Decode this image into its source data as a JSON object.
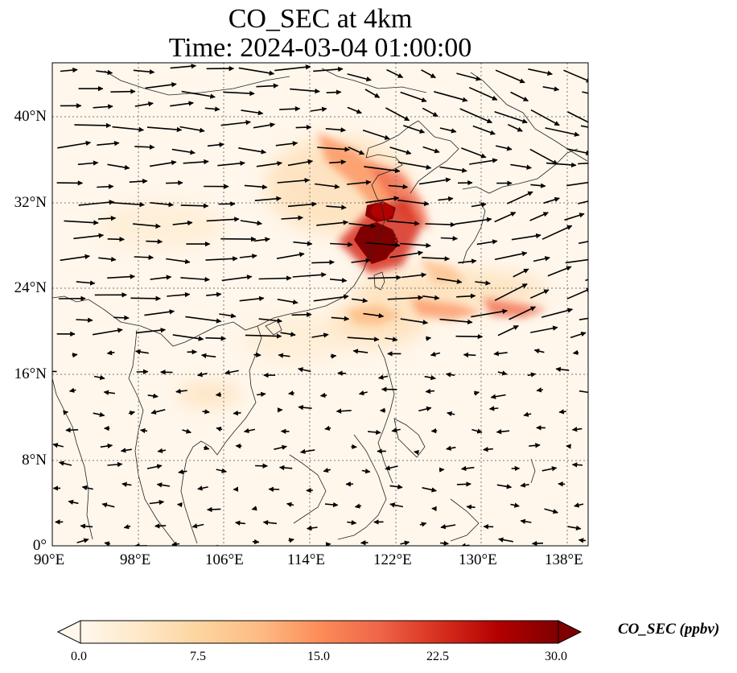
{
  "figure": {
    "title_line1": "CO_SEC at 4km",
    "title_line2": "Time: 2024-03-04 01:00:00"
  },
  "map": {
    "lon_range": [
      90,
      140
    ],
    "lat_range": [
      0,
      45
    ],
    "lon_ticks": [
      "90°E",
      "98°E",
      "106°E",
      "114°E",
      "122°E",
      "130°E",
      "138°E"
    ],
    "lat_ticks": [
      "0°",
      "8°N",
      "16°N",
      "24°N",
      "32°N",
      "40°N"
    ],
    "gridlines": true,
    "coastlines": true,
    "field_colormap": "OrRd",
    "plume_centers": [
      {
        "lon": 119.5,
        "lat": 28.5,
        "level": 30
      },
      {
        "lon": 120.5,
        "lat": 31.3,
        "level": 30
      },
      {
        "lon": 117.0,
        "lat": 36.5,
        "level": 12
      },
      {
        "lon": 121.5,
        "lat": 35.0,
        "level": 15
      },
      {
        "lon": 125.0,
        "lat": 31.0,
        "level": 12
      },
      {
        "lon": 133.0,
        "lat": 22.0,
        "level": 13
      },
      {
        "lon": 124.0,
        "lat": 22.5,
        "level": 8
      }
    ]
  },
  "colorbar": {
    "label": "CO_SEC (ppbv)",
    "ticks": [
      "0.0",
      "7.5",
      "15.0",
      "22.5",
      "30.0"
    ],
    "min": 0,
    "max": 30,
    "extend": "both",
    "colors": [
      "#fff7ec",
      "#fee8c8",
      "#fdd49e",
      "#fdbb84",
      "#fc8d59",
      "#ef6548",
      "#d7301f",
      "#b30000",
      "#7f0000"
    ]
  },
  "wind_vectors": "quiver field (eastward flow north of 20°N, weak variable flow south)"
}
